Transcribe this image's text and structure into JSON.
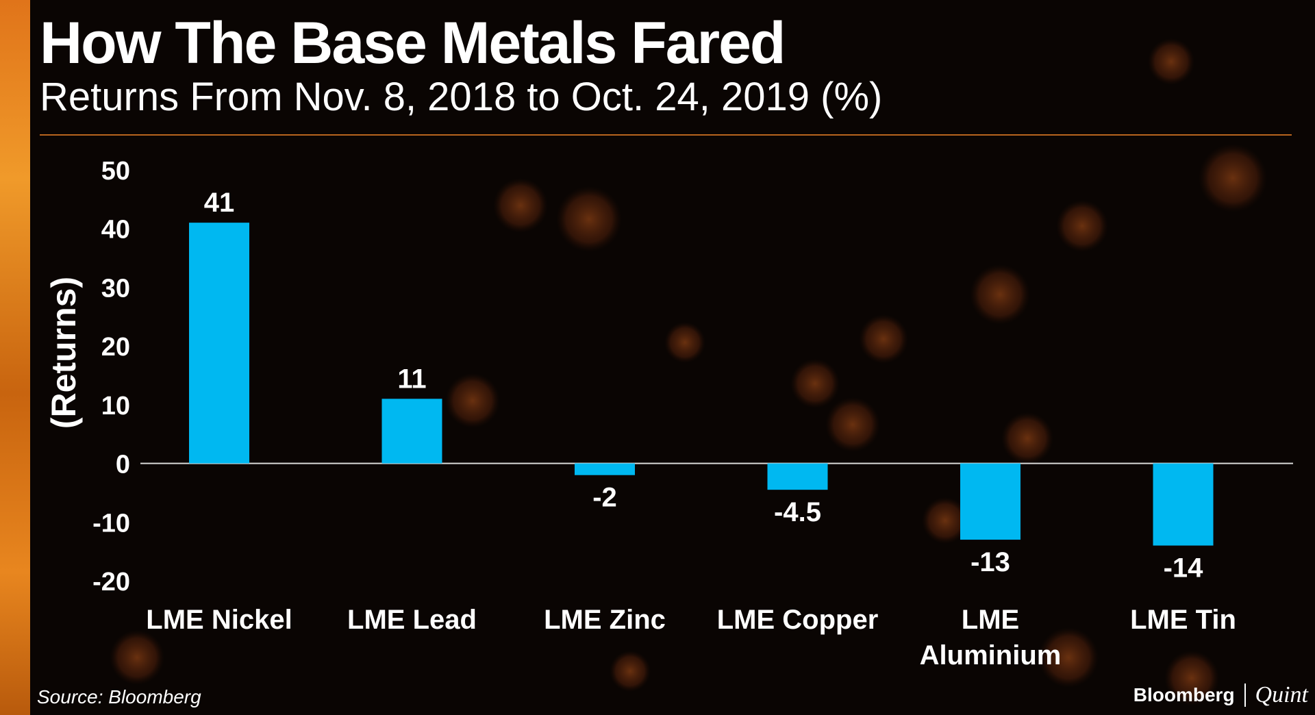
{
  "header": {
    "title": "How The Base Metals Fared",
    "subtitle": "Returns From Nov. 8, 2018 to Oct. 24, 2019 (%)"
  },
  "footer": {
    "source": "Source: Bloomberg",
    "logo_left": "Bloomberg",
    "logo_right": "Quint"
  },
  "colors": {
    "bar": "#00b8f1",
    "text": "#ffffff",
    "zero_line": "#d9d9d9",
    "rule": "#b8641e",
    "accent_orange": "#e8861f"
  },
  "chart_data": {
    "type": "bar",
    "categories": [
      "LME Nickel",
      "LME Lead",
      "LME Zinc",
      "LME Copper",
      "LME Aluminium",
      "LME Tin"
    ],
    "values": [
      41,
      11,
      -2,
      -4.5,
      -13,
      -14
    ],
    "data_labels": [
      "41",
      "11",
      "-2",
      "-4.5",
      "-13",
      "-14"
    ],
    "ylabel": "(Returns)",
    "ylim": [
      -20,
      50
    ],
    "yticks": [
      50,
      40,
      30,
      20,
      10,
      0,
      -10,
      -20
    ],
    "grid": false,
    "legend": "none"
  }
}
